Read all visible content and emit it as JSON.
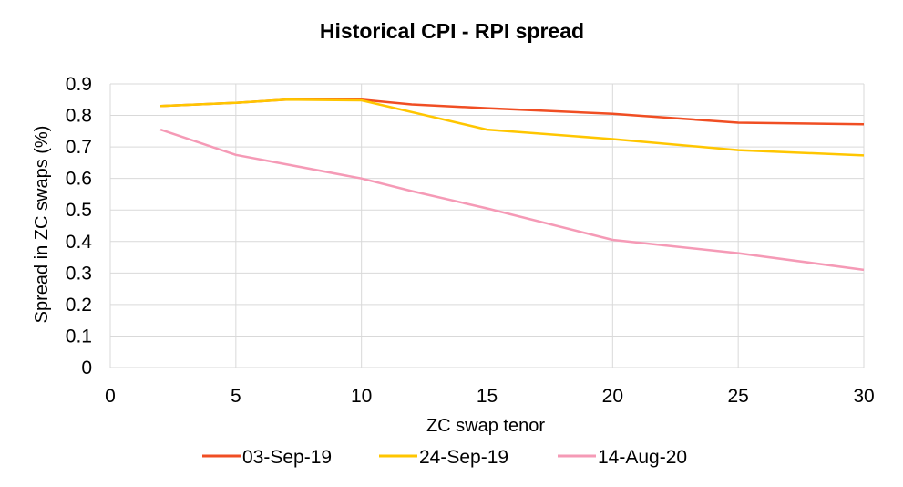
{
  "chart_data": {
    "type": "line",
    "title": "Historical CPI - RPI spread",
    "xlabel": "ZC swap tenor",
    "ylabel": "Spread in ZC swaps (%)",
    "xlim": [
      0,
      30
    ],
    "ylim": [
      0,
      0.9
    ],
    "x_ticks": [
      "0",
      "5",
      "10",
      "15",
      "20",
      "25",
      "30"
    ],
    "y_ticks": [
      "0",
      "0.1",
      "0.2",
      "0.3",
      "0.4",
      "0.5",
      "0.6",
      "0.7",
      "0.8",
      "0.9"
    ],
    "grid": "vertical and horizontal",
    "legend_position": "bottom",
    "series": [
      {
        "name": "03-Sep-19",
        "color": "#f04e23",
        "points": [
          [
            2,
            0.83
          ],
          [
            5,
            0.84
          ],
          [
            7,
            0.85
          ],
          [
            10,
            0.85
          ],
          [
            12,
            0.835
          ],
          [
            15,
            0.823
          ],
          [
            20,
            0.805
          ],
          [
            25,
            0.777
          ],
          [
            30,
            0.772
          ]
        ]
      },
      {
        "name": "24-Sep-19",
        "color": "#ffc600",
        "points": [
          [
            2,
            0.83
          ],
          [
            5,
            0.84
          ],
          [
            7,
            0.85
          ],
          [
            10,
            0.848
          ],
          [
            15,
            0.755
          ],
          [
            20,
            0.725
          ],
          [
            25,
            0.69
          ],
          [
            30,
            0.673
          ]
        ]
      },
      {
        "name": "14-Aug-20",
        "color": "#f59ab6",
        "points": [
          [
            2,
            0.755
          ],
          [
            5,
            0.675
          ],
          [
            7,
            0.645
          ],
          [
            10,
            0.6
          ],
          [
            12,
            0.56
          ],
          [
            15,
            0.505
          ],
          [
            20,
            0.405
          ],
          [
            25,
            0.363
          ],
          [
            30,
            0.31
          ]
        ]
      }
    ]
  }
}
